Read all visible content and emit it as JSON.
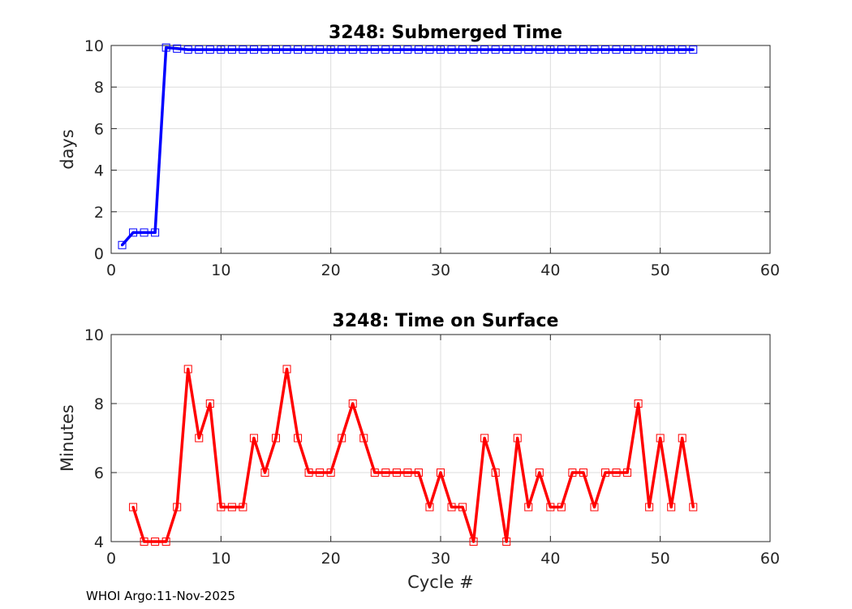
{
  "chart_data": [
    {
      "type": "line",
      "title": "3248: Submerged Time",
      "xlabel": "",
      "ylabel": "days",
      "xlim": [
        0,
        60
      ],
      "ylim": [
        0,
        10
      ],
      "xticks": [
        "0",
        "10",
        "20",
        "30",
        "40",
        "50",
        "60"
      ],
      "yticks": [
        "0",
        "2",
        "4",
        "6",
        "8",
        "10"
      ],
      "grid": true,
      "color": "#0000ff",
      "marker": "square",
      "series": [
        {
          "name": "Submerged Time",
          "x": [
            1,
            2,
            3,
            4,
            5,
            6,
            7,
            8,
            9,
            10,
            11,
            12,
            13,
            14,
            15,
            16,
            17,
            18,
            19,
            20,
            21,
            22,
            23,
            24,
            25,
            26,
            27,
            28,
            29,
            30,
            31,
            32,
            33,
            34,
            35,
            36,
            37,
            38,
            39,
            40,
            41,
            42,
            43,
            44,
            45,
            46,
            47,
            48,
            49,
            50,
            51,
            52,
            53
          ],
          "values": [
            0.4,
            1.0,
            1.0,
            1.0,
            9.9,
            9.85,
            9.8,
            9.8,
            9.8,
            9.8,
            9.8,
            9.8,
            9.8,
            9.8,
            9.8,
            9.8,
            9.8,
            9.8,
            9.8,
            9.8,
            9.8,
            9.8,
            9.8,
            9.8,
            9.8,
            9.8,
            9.8,
            9.8,
            9.8,
            9.8,
            9.8,
            9.8,
            9.8,
            9.8,
            9.8,
            9.8,
            9.8,
            9.8,
            9.8,
            9.8,
            9.8,
            9.8,
            9.8,
            9.8,
            9.8,
            9.8,
            9.8,
            9.8,
            9.8,
            9.8,
            9.8,
            9.8,
            9.8
          ]
        }
      ]
    },
    {
      "type": "line",
      "title": "3248: Time on Surface",
      "xlabel": "Cycle #",
      "ylabel": "Minutes",
      "xlim": [
        0,
        60
      ],
      "ylim": [
        4,
        10
      ],
      "xticks": [
        "0",
        "10",
        "20",
        "30",
        "40",
        "50",
        "60"
      ],
      "yticks": [
        "4",
        "6",
        "8",
        "10"
      ],
      "grid": true,
      "color": "#ff0000",
      "marker": "square",
      "series": [
        {
          "name": "Time on Surface",
          "x": [
            2,
            3,
            4,
            5,
            6,
            7,
            8,
            9,
            10,
            11,
            12,
            13,
            14,
            15,
            16,
            17,
            18,
            19,
            20,
            21,
            22,
            23,
            24,
            25,
            26,
            27,
            28,
            29,
            30,
            31,
            32,
            33,
            34,
            35,
            36,
            37,
            38,
            39,
            40,
            41,
            42,
            43,
            44,
            45,
            46,
            47,
            48,
            49,
            50,
            51,
            52,
            53
          ],
          "values": [
            5,
            4,
            4,
            4,
            5,
            9,
            7,
            8,
            5,
            5,
            5,
            7,
            6,
            7,
            9,
            7,
            6,
            6,
            6,
            7,
            8,
            7,
            6,
            6,
            6,
            6,
            6,
            5,
            6,
            5,
            5,
            4,
            7,
            6,
            4,
            7,
            5,
            6,
            5,
            5,
            6,
            6,
            5,
            6,
            6,
            6,
            8,
            5,
            7,
            5,
            7,
            5
          ]
        }
      ]
    }
  ],
  "footer": "WHOI Argo:11-Nov-2025"
}
